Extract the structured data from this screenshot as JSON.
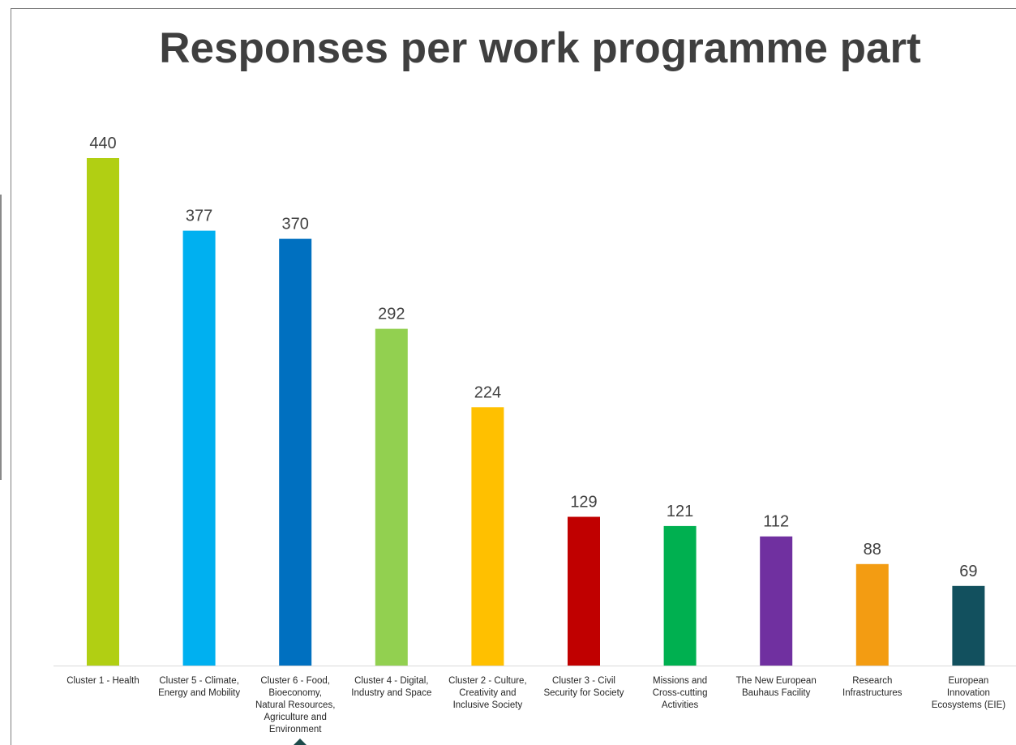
{
  "chart_data": {
    "type": "bar",
    "title": "Responses per work programme part",
    "xlabel": "",
    "ylabel": "",
    "ylim": [
      0,
      440
    ],
    "grid": false,
    "legend": "none",
    "categories": [
      [
        "Cluster 1 - Health"
      ],
      [
        "Cluster 5 - Climate,",
        "Energy and Mobility"
      ],
      [
        "Cluster 6 - Food,",
        "Bioeconomy,",
        "Natural Resources,",
        "Agriculture and",
        "Environment"
      ],
      [
        "Cluster 4 - Digital,",
        "Industry and Space"
      ],
      [
        "Cluster 2 - Culture,",
        "Creativity and",
        "Inclusive Society"
      ],
      [
        "Cluster 3 - Civil",
        "Security for Society"
      ],
      [
        "Missions and",
        "Cross-cutting",
        "Activities"
      ],
      [
        "The New European",
        "Bauhaus Facility"
      ],
      [
        "Research",
        "Infrastructures"
      ],
      [
        "European",
        "Innovation",
        "Ecosystems (EIE)"
      ]
    ],
    "values": [
      440,
      377,
      370,
      292,
      224,
      129,
      121,
      112,
      88,
      69
    ],
    "colors": [
      "#b1cf13",
      "#00b0f0",
      "#0070c0",
      "#92d050",
      "#ffc000",
      "#c00000",
      "#00b050",
      "#7030a0",
      "#f39c12",
      "#12505e"
    ]
  }
}
